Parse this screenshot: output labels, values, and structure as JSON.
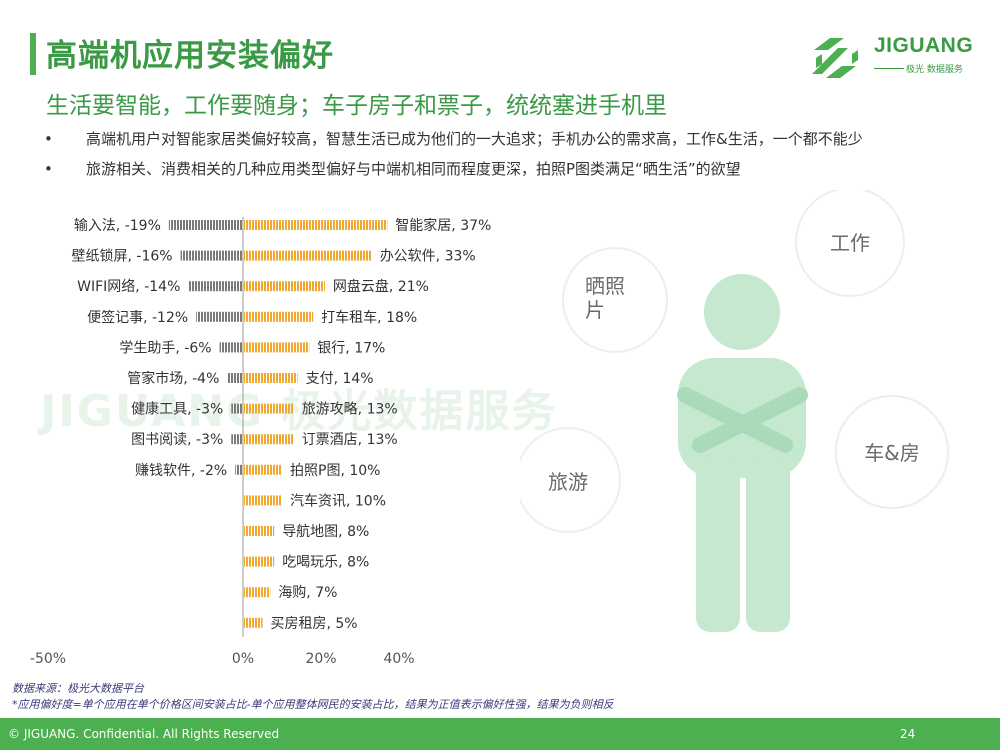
{
  "header": {
    "title": "高端机应用安装偏好",
    "subtitle": "生活要智能，工作要随身；车子房子和票子，统统塞进手机里"
  },
  "bullets": [
    "高端机用户对智能家居类偏好较高，智慧生活已成为他们的一大追求；手机办公的需求高，工作&生活，一个都不能少",
    "旅游相关、消费相关的几种应用类型偏好与中端机相同而程度更深，拍照P图类满足“晒生活”的欲望"
  ],
  "bullet_symbol": "•",
  "logo": {
    "name": "JIGUANG",
    "tagline": "极光 数据服务"
  },
  "watermark": "JIGUANG 极光数据服务",
  "chart_data": {
    "type": "bar",
    "orientation": "horizontal",
    "xlim": [
      -50,
      40
    ],
    "xticks": [
      -50,
      0,
      20,
      40
    ],
    "xtick_labels": [
      "-50%",
      "0%",
      "20%",
      "40%"
    ],
    "unit": "%",
    "negative": [
      {
        "label": "输入法",
        "value": -19
      },
      {
        "label": "壁纸锁屏",
        "value": -16
      },
      {
        "label": "WIFI网络",
        "value": -14
      },
      {
        "label": "便签记事",
        "value": -12
      },
      {
        "label": "学生助手",
        "value": -6
      },
      {
        "label": "管家市场",
        "value": -4
      },
      {
        "label": "健康工具",
        "value": -3
      },
      {
        "label": "图书阅读",
        "value": -3
      },
      {
        "label": "赚钱软件",
        "value": -2
      }
    ],
    "positive": [
      {
        "label": "智能家居",
        "value": 37
      },
      {
        "label": "办公软件",
        "value": 33
      },
      {
        "label": "网盘云盘",
        "value": 21
      },
      {
        "label": "打车租车",
        "value": 18
      },
      {
        "label": "银行",
        "value": 17
      },
      {
        "label": "支付",
        "value": 14
      },
      {
        "label": "旅游攻略",
        "value": 13
      },
      {
        "label": "订票酒店",
        "value": 13
      },
      {
        "label": "拍照P图",
        "value": 10
      },
      {
        "label": "汽车资讯",
        "value": 10
      },
      {
        "label": "导航地图",
        "value": 8
      },
      {
        "label": "吃喝玩乐",
        "value": 8
      },
      {
        "label": "海购",
        "value": 7
      },
      {
        "label": "买房租房",
        "value": 5
      }
    ],
    "colors": {
      "negative": "#7a7a7a",
      "positive": "#f0a830",
      "axis": "#999999"
    }
  },
  "figure": {
    "bubbles": [
      "工作",
      "晒照片",
      "车&房",
      "旅游"
    ],
    "colors": {
      "person": "#c5e8cf",
      "bubble": "#ffffff"
    }
  },
  "notes": {
    "source": "数据来源：极光大数据平台",
    "definition": "*应用偏好度=单个应用在单个价格区间安装占比-单个应用整体网民的安装占比，结果为正值表示偏好性强，结果为负则相反"
  },
  "footer": {
    "copyright": "© JIGUANG. Confidential. All Rights Reserved",
    "page": "24"
  },
  "theme": {
    "green": "#4caf50",
    "title_green": "#3a9a46"
  }
}
